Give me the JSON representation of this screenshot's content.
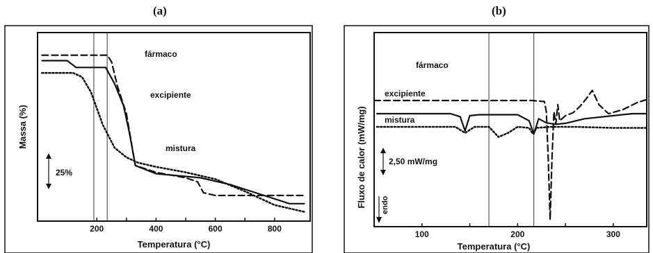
{
  "panels": {
    "a_label": "(a)",
    "b_label": "(b)"
  },
  "chart_data": [
    {
      "type": "line",
      "panel": "(a)",
      "xlabel": "Temperatura (°C)",
      "ylabel": "Massa (%)",
      "xlim": [
        0,
        920
      ],
      "xticks": [
        "200",
        "400",
        "600",
        "800"
      ],
      "scale_bar": "25%",
      "series": [
        {
          "name": "fármaco",
          "style": "dashed",
          "x": [
            15,
            200,
            235,
            250,
            270,
            300,
            330,
            400,
            500,
            540,
            560,
            600,
            700,
            800,
            900
          ],
          "y": [
            103,
            103,
            103,
            98,
            80,
            60,
            22,
            17,
            13,
            10,
            2,
            0,
            0,
            0,
            0
          ]
        },
        {
          "name": "excipiente",
          "style": "solid",
          "x": [
            15,
            100,
            130,
            230,
            260,
            290,
            310,
            330,
            400,
            500,
            550,
            650,
            750,
            850,
            900
          ],
          "y": [
            99,
            99,
            94,
            94,
            82,
            66,
            46,
            22,
            16,
            14,
            13,
            8,
            1,
            -6,
            -6
          ]
        },
        {
          "name": "mistura",
          "style": "dotted",
          "x": [
            15,
            120,
            150,
            180,
            220,
            260,
            300,
            340,
            400,
            500,
            600,
            700,
            800,
            900
          ],
          "y": [
            90,
            90,
            87,
            76,
            52,
            35,
            28,
            24,
            21,
            17,
            12,
            3,
            -7,
            -12
          ]
        }
      ]
    },
    {
      "type": "line",
      "panel": "(b)",
      "xlabel": "Temperatura (°C)",
      "ylabel": "Fluxo de calor (mW/mg)",
      "xlim": [
        50,
        335
      ],
      "xticks": [
        "100",
        "200",
        "300"
      ],
      "scale_bar": "2,50 mW/mg",
      "endo_label": "endo",
      "series": [
        {
          "name": "fármaco",
          "style": "dashed",
          "x": [
            50,
            150,
            215,
            228,
            230,
            232,
            234,
            236,
            238,
            240,
            242,
            244,
            250,
            258,
            265,
            272,
            278,
            285,
            295,
            310,
            325,
            335
          ],
          "y": [
            2.6,
            2.6,
            2.6,
            2.5,
            1.5,
            -3.0,
            -9.2,
            -3.0,
            1.5,
            0.3,
            2.2,
            0.6,
            1.1,
            1.4,
            2.0,
            2.8,
            3.6,
            2.2,
            1.3,
            1.7,
            2.4,
            2.7
          ]
        },
        {
          "name": "excipiente",
          "style": "solid",
          "x": [
            53,
            130,
            140,
            145,
            150,
            160,
            200,
            212,
            217,
            222,
            230,
            240,
            250,
            270,
            300,
            320,
            335
          ],
          "y": [
            1.3,
            1.3,
            1.0,
            -0.4,
            1.1,
            1.2,
            1.2,
            0.6,
            -0.7,
            0.8,
            0.4,
            0.25,
            0.35,
            0.8,
            1.1,
            1.3,
            1.3
          ]
        },
        {
          "name": "mistura",
          "style": "dotted",
          "x": [
            53,
            135,
            145,
            155,
            170,
            180,
            190,
            200,
            212,
            216,
            220,
            235,
            260,
            300,
            335
          ],
          "y": [
            0.0,
            0.0,
            -0.6,
            0.0,
            0.0,
            -1.0,
            -0.6,
            0.0,
            -0.1,
            -0.7,
            -0.1,
            0.0,
            0.0,
            -0.1,
            -0.1
          ]
        }
      ]
    }
  ]
}
